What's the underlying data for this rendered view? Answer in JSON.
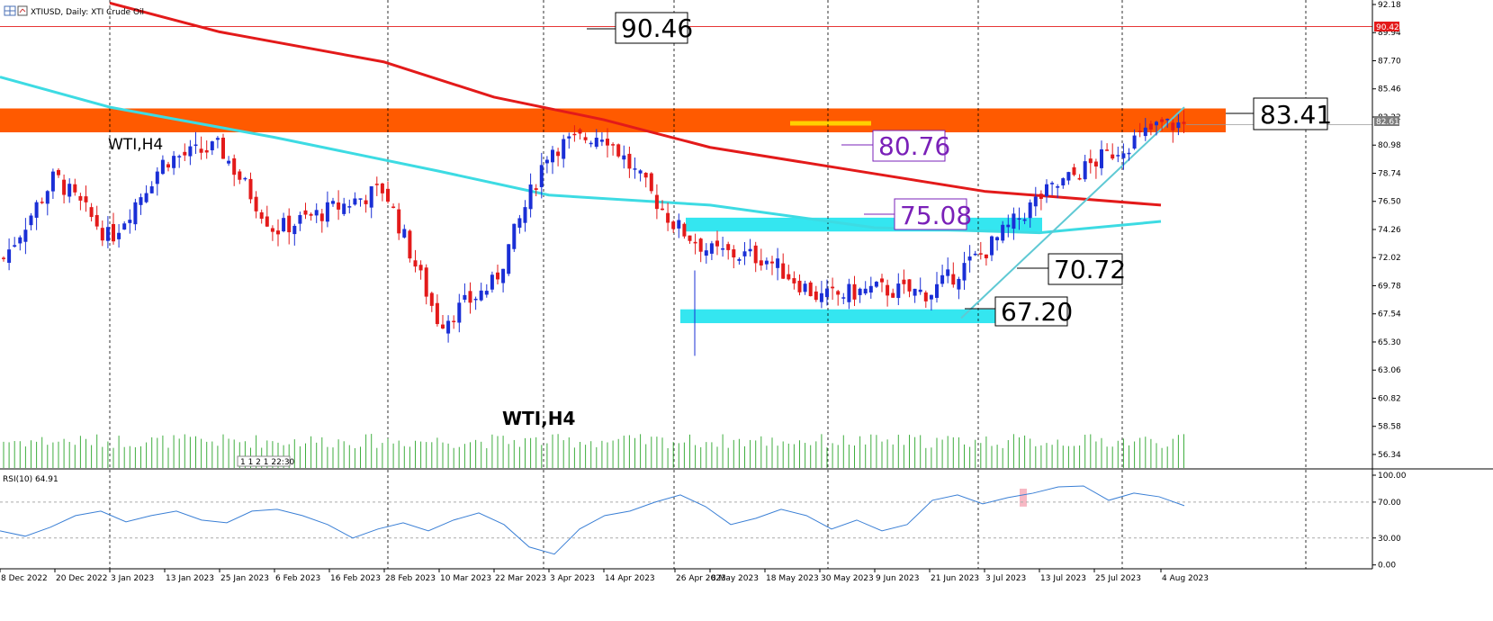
{
  "header": {
    "symbol_line": "XTIUSD, Daily: XTI Crude Oil",
    "icon": "chart-grid-icon"
  },
  "labels": {
    "wti_upper": "WTI,H4",
    "wti_lower": "WTI,H4",
    "rsi_title": "RSI(10) 64.91",
    "time_marker": "1 1 2 1 22:30"
  },
  "annotations": [
    {
      "id": "ann-90-46",
      "text": "90.46",
      "style": "black"
    },
    {
      "id": "ann-83-41",
      "text": "83.41",
      "style": "black"
    },
    {
      "id": "ann-80-76",
      "text": "80.76",
      "style": "purple"
    },
    {
      "id": "ann-75-08",
      "text": "75.08",
      "style": "purple"
    },
    {
      "id": "ann-70-72",
      "text": "70.72",
      "style": "black"
    },
    {
      "id": "ann-67-20",
      "text": "67.20",
      "style": "black"
    }
  ],
  "price_tags": {
    "resistance_line": "90.42",
    "current_price": "82.61"
  },
  "colors": {
    "bull": "#1a2fd6",
    "bear": "#e31a1a",
    "ma_slow": "#e31a1a",
    "ma_fast": "#3ddbe3",
    "resistance_zone": "#ff5a00",
    "support_zone": "#34e6f0",
    "volume": "#3fae3f",
    "rsi_line": "#3a7fd5",
    "annotation_purple": "#7a20b8"
  },
  "chart_data": [
    {
      "type": "candlestick",
      "title": "XTIUSD, Daily: XTI Crude Oil",
      "ylim": [
        56.34,
        92.18
      ],
      "y_ticks": [
        "92.18",
        "89.94",
        "87.70",
        "85.46",
        "83.22",
        "80.98",
        "78.74",
        "76.50",
        "74.26",
        "72.02",
        "69.78",
        "67.54",
        "65.30",
        "63.06",
        "60.82",
        "58.58",
        "56.34"
      ],
      "x_ticks": [
        "8 Dec 2022",
        "20 Dec 2022",
        "3 Jan 2023",
        "13 Jan 2023",
        "25 Jan 2023",
        "6 Feb 2023",
        "16 Feb 2023",
        "28 Feb 2023",
        "10 Mar 2023",
        "22 Mar 2023",
        "3 Apr 2023",
        "14 Apr 2023",
        "26 Apr 2023",
        "8 May 2023",
        "18 May 2023",
        "30 May 2023",
        "9 Jun 2023",
        "21 Jun 2023",
        "3 Jul 2023",
        "13 Jul 2023",
        "25 Jul 2023",
        "4 Aug 2023"
      ],
      "close_path": [
        [
          "8 Dec 2022",
          71.5
        ],
        [
          "20 Dec 2022",
          78.5
        ],
        [
          "3 Jan 2023",
          73.5
        ],
        [
          "13 Jan 2023",
          79.8
        ],
        [
          "25 Jan 2023",
          80.8
        ],
        [
          "6 Feb 2023",
          74.2
        ],
        [
          "16 Feb 2023",
          75.8
        ],
        [
          "28 Feb 2023",
          77.5
        ],
        [
          "10 Mar 2023",
          66.8
        ],
        [
          "22 Mar 2023",
          70.0
        ],
        [
          "3 Apr 2023",
          80.7
        ],
        [
          "14 Apr 2023",
          82.0
        ],
        [
          "26 Apr 2023",
          74.6
        ],
        [
          "8 May 2023",
          72.5
        ],
        [
          "18 May 2023",
          72.0
        ],
        [
          "30 May 2023",
          68.8
        ],
        [
          "9 Jun 2023",
          69.5
        ],
        [
          "21 Jun 2023",
          69.2
        ],
        [
          "3 Jul 2023",
          72.5
        ],
        [
          "13 Jul 2023",
          76.8
        ],
        [
          "25 Jul 2023",
          79.6
        ],
        [
          "4 Aug 2023",
          82.6
        ]
      ],
      "moving_averages": [
        {
          "name": "",
          "color": "#e31a1a",
          "points": [
            [
              "3 Jan 2023",
              92.3
            ],
            [
              "25 Jan 2023",
              90.0
            ],
            [
              "28 Feb 2023",
              87.6
            ],
            [
              "22 Mar 2023",
              84.8
            ],
            [
              "14 Apr 2023",
              83.0
            ],
            [
              "8 May 2023",
              80.8
            ],
            [
              "9 Jun 2023",
              78.7
            ],
            [
              "3 Jul 2023",
              77.3
            ],
            [
              "4 Aug 2023",
              76.2
            ]
          ]
        },
        {
          "name": "",
          "color": "#3ddbe3",
          "points": [
            [
              "8 Dec 2022",
              86.4
            ],
            [
              "3 Jan 2023",
              84.0
            ],
            [
              "6 Feb 2023",
              81.6
            ],
            [
              "10 Mar 2023",
              78.9
            ],
            [
              "3 Apr 2023",
              77.0
            ],
            [
              "8 May 2023",
              76.2
            ],
            [
              "9 Jun 2023",
              74.4
            ],
            [
              "13 Jul 2023",
              74.0
            ],
            [
              "4 Aug 2023",
              74.9
            ]
          ]
        }
      ],
      "zones": [
        {
          "type": "resistance",
          "from": 82.0,
          "to": 83.9
        },
        {
          "type": "support",
          "from": 74.1,
          "to": 75.2
        },
        {
          "type": "support",
          "from": 66.8,
          "to": 67.9
        }
      ],
      "levels": [
        {
          "label": "90.46",
          "value": 90.46
        },
        {
          "label": "83.41",
          "value": 83.41
        },
        {
          "label": "80.76",
          "value": 80.76
        },
        {
          "label": "75.08",
          "value": 75.08
        },
        {
          "label": "70.72",
          "value": 70.72
        },
        {
          "label": "67.20",
          "value": 67.2
        }
      ]
    },
    {
      "type": "line",
      "title": "RSI(10) 64.91",
      "ylim": [
        0,
        100
      ],
      "y_ticks": [
        "100.00",
        "70.00",
        "30.00",
        "0.00"
      ],
      "levels": [
        70,
        30
      ],
      "series": [
        {
          "name": "RSI(10)",
          "values": [
            38,
            32,
            42,
            55,
            60,
            48,
            55,
            60,
            50,
            47,
            60,
            62,
            55,
            45,
            30,
            40,
            47,
            38,
            50,
            58,
            45,
            20,
            12,
            40,
            55,
            60,
            70,
            78,
            65,
            45,
            52,
            62,
            55,
            40,
            50,
            38,
            45,
            72,
            78,
            68,
            75,
            80,
            87,
            88,
            72,
            80,
            76,
            66
          ]
        }
      ]
    }
  ]
}
